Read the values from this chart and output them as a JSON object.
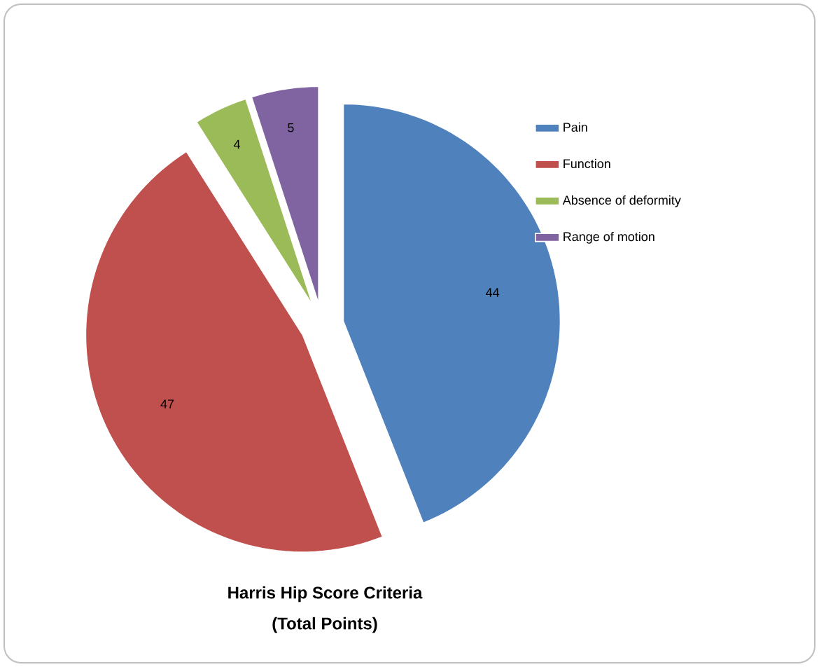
{
  "chart_data": {
    "type": "pie",
    "title": "Harris Hip Score Criteria",
    "subtitle": "(Total Points)",
    "categories": [
      "Pain",
      "Function",
      "Absence of deformity",
      "Range of motion"
    ],
    "values": [
      44,
      47,
      4,
      5
    ],
    "colors": [
      "#4f81bd",
      "#c0504d",
      "#9bbb59",
      "#8064a2"
    ],
    "data_labels": true,
    "legend": "top right"
  }
}
